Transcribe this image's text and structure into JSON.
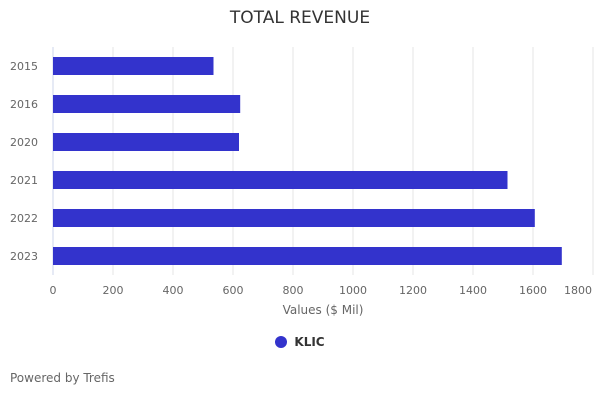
{
  "chart_data": {
    "type": "bar",
    "orientation": "horizontal",
    "title": "TOTAL REVENUE",
    "categories": [
      "2015",
      "2016",
      "2020",
      "2021",
      "2022",
      "2023"
    ],
    "series": [
      {
        "name": "KLIC",
        "values": [
          535,
          624,
          620,
          1515,
          1606,
          1696
        ],
        "color": "#3333cc"
      }
    ],
    "xlabel": "Values ($ Mil)",
    "ylabel": "",
    "xlim": [
      0,
      1800
    ],
    "xticks": [
      0,
      200,
      400,
      600,
      800,
      1000,
      1200,
      1400,
      1600,
      1800
    ],
    "grid": true,
    "legend": "bottom-center"
  },
  "footer": {
    "credit": "Powered by Trefis"
  }
}
